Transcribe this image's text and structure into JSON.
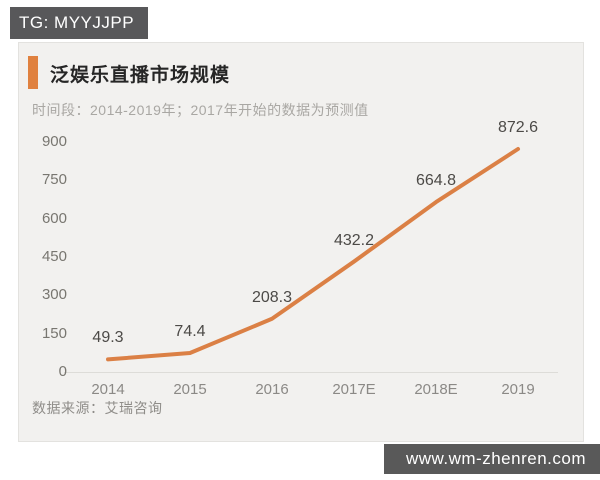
{
  "watermarks": {
    "tg_badge": "TG: MYYJJPP",
    "site_badge": "www.wm-zhenren.com"
  },
  "card": {
    "title": "泛娱乐直播市场规模",
    "subtitle": "时间段：2014-2019年；2017年开始的数据为预测值",
    "source": "数据来源：艾瑞咨询"
  },
  "colors": {
    "accent_orange": "#e0813f",
    "line_orange": "#db8045",
    "badge_gray": "#58585a",
    "card_bg": "#f2f1ef"
  },
  "chart_data": {
    "type": "line",
    "title": "泛娱乐直播市场规模",
    "subtitle": "时间段：2014-2019年；2017年开始的数据为预测值",
    "source": "数据来源：艾瑞咨询",
    "categories": [
      "2014",
      "2015",
      "2016",
      "2017E",
      "2018E",
      "2019"
    ],
    "values": [
      49.3,
      74.4,
      208.3,
      432.2,
      664.8,
      872.6
    ],
    "data_labels": [
      "49.3",
      "74.4",
      "208.3",
      "432.2",
      "664.8",
      "872.6"
    ],
    "y_ticks": [
      0,
      150,
      300,
      450,
      600,
      750,
      900
    ],
    "ylim": [
      0,
      900
    ],
    "xlabel": "",
    "ylabel": "",
    "grid": false,
    "legend": false,
    "line_color": "#db8045"
  }
}
